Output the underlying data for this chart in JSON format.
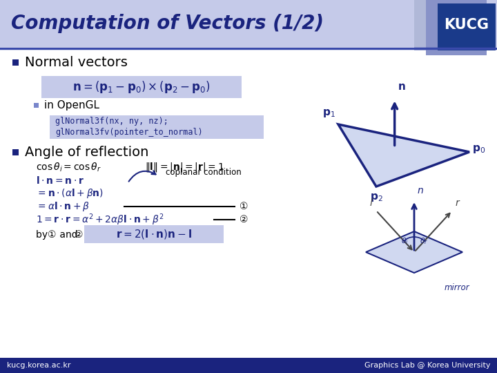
{
  "title": "Computation of Vectors (1/2)",
  "title_color": "#1a237e",
  "title_bg": "#c5cae9",
  "header_line_color": "#3949ab",
  "kucg_bg_light": "#b0b8d8",
  "kucg_bg_medium": "#8892c8",
  "kucg_bg_dark": "#1a3a8a",
  "kucg_text": "KUCG",
  "kucg_text_color": "#ffffff",
  "bg_color": "#ffffff",
  "bullet_color": "#1a237e",
  "body_text_color": "#000000",
  "dark_blue": "#1a237e",
  "medium_blue": "#3949ab",
  "light_blue_box": "#c5cae9",
  "code_bg": "#c5cae9",
  "footer_bg": "#1a237e",
  "footer_text_color": "#ffffff",
  "footer_left": "kucg.korea.ac.kr",
  "footer_right": "Graphics Lab @ Korea University",
  "poly_face": "#d0d8f0",
  "poly_edge": "#1a237e"
}
